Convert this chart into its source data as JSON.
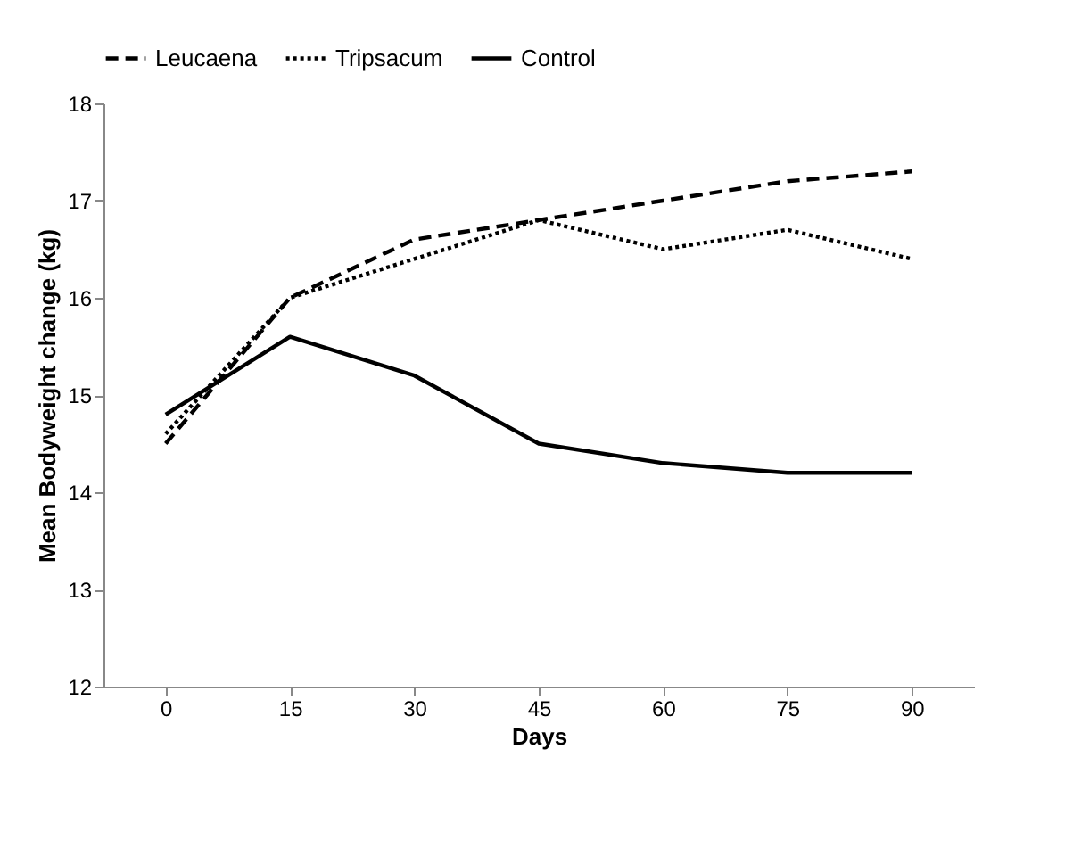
{
  "chart_data": {
    "type": "line",
    "xlabel": "Days",
    "ylabel": "Mean Bodyweight change (kg)",
    "categories": [
      "0",
      "15",
      "30",
      "45",
      "60",
      "75",
      "90"
    ],
    "series": [
      {
        "name": "Leucaena",
        "color": "#000000",
        "line_style": "dashed",
        "values": [
          14.5,
          16.0,
          16.6,
          16.8,
          17.0,
          17.2,
          17.3
        ]
      },
      {
        "name": "Tripsacum",
        "color": "#000000",
        "line_style": "dotted",
        "values": [
          14.6,
          16.0,
          16.4,
          16.8,
          16.5,
          16.7,
          16.4
        ]
      },
      {
        "name": "Control",
        "color": "#000000",
        "line_style": "solid",
        "values": [
          14.8,
          15.6,
          15.2,
          14.5,
          14.3,
          14.2,
          14.2
        ]
      }
    ],
    "ylim": [
      12,
      18
    ],
    "yticks": [
      12,
      13,
      14,
      15,
      16,
      17,
      18
    ],
    "grid": false,
    "legend": "top",
    "marker": "none"
  }
}
